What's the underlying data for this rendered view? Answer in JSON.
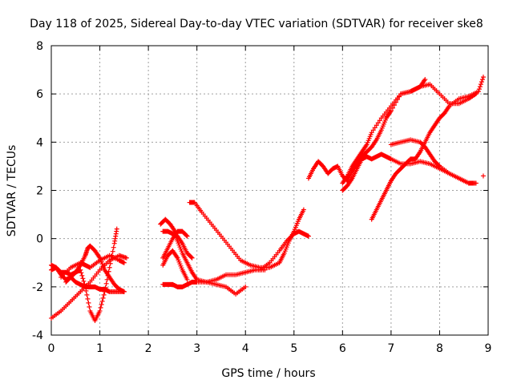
{
  "chart_data": {
    "type": "scatter",
    "title": "Day 118 of 2025, Sidereal Day-to-day VTEC variation (SDTVAR) for receiver ske8",
    "xlabel": "GPS time / hours",
    "ylabel": "SDTVAR / TECUs",
    "xlim": [
      0,
      9
    ],
    "ylim": [
      -4,
      8
    ],
    "xticks": [
      "0",
      "1",
      "2",
      "3",
      "4",
      "5",
      "6",
      "7",
      "8",
      "9"
    ],
    "yticks": [
      "-4",
      "-2",
      "0",
      "2",
      "4",
      "6",
      "8"
    ],
    "grid": true,
    "marker": "plus",
    "color": "#ff0000",
    "series": [
      {
        "x": [
          0.0,
          0.2,
          0.4,
          0.6,
          0.8,
          1.0,
          1.2,
          1.4,
          1.55
        ],
        "y": [
          -3.3,
          -3.0,
          -2.6,
          -2.2,
          -1.8,
          -1.3,
          -0.9,
          -0.7,
          -0.8
        ]
      },
      {
        "x": [
          0.0,
          0.1,
          0.2,
          0.3,
          0.4,
          0.5,
          0.6,
          0.7,
          0.8,
          0.9,
          1.0,
          1.1,
          1.2,
          1.35,
          1.5
        ],
        "y": [
          -1.3,
          -1.2,
          -1.5,
          -1.7,
          -1.6,
          -1.8,
          -1.9,
          -2.0,
          -2.0,
          -2.0,
          -2.1,
          -2.1,
          -2.2,
          -2.2,
          -2.2
        ]
      },
      {
        "x": [
          0.0,
          0.1,
          0.2,
          0.3,
          0.4,
          0.5,
          0.6,
          0.7,
          0.75,
          0.8,
          0.9,
          1.0,
          1.1,
          1.2,
          1.3,
          1.4,
          1.5
        ],
        "y": [
          -1.1,
          -1.2,
          -1.4,
          -1.4,
          -1.5,
          -1.4,
          -1.1,
          -0.7,
          -0.4,
          -0.3,
          -0.5,
          -0.8,
          -1.3,
          -1.6,
          -1.9,
          -2.1,
          -2.2
        ]
      },
      {
        "x": [
          0.3,
          0.4,
          0.5,
          0.6,
          0.7,
          0.8,
          0.9,
          1.0,
          1.1,
          1.2,
          1.3,
          1.35
        ],
        "y": [
          -1.8,
          -1.6,
          -1.4,
          -1.3,
          -2.0,
          -3.0,
          -3.4,
          -3.0,
          -2.2,
          -1.2,
          -0.2,
          0.4
        ]
      },
      {
        "x": [
          0.2,
          0.4,
          0.6,
          0.7,
          0.8,
          1.0,
          1.2,
          1.4,
          1.5
        ],
        "y": [
          -1.6,
          -1.2,
          -1.0,
          -1.1,
          -1.2,
          -0.9,
          -0.7,
          -0.9,
          -1.0
        ]
      },
      {
        "x": [
          2.3,
          2.4,
          2.5,
          2.6,
          2.7,
          2.8,
          2.9,
          3.0,
          3.2,
          3.4,
          3.6,
          3.8,
          4.0
        ],
        "y": [
          -1.9,
          -1.9,
          -1.9,
          -2.0,
          -2.0,
          -1.9,
          -1.8,
          -1.8,
          -1.8,
          -1.9,
          -2.0,
          -2.3,
          -2.0
        ]
      },
      {
        "x": [
          2.25,
          2.35,
          2.45,
          2.55,
          2.6,
          2.7,
          2.8,
          2.9,
          3.0,
          3.2,
          3.4,
          3.6,
          3.8,
          4.0,
          4.2,
          4.4
        ],
        "y": [
          0.6,
          0.8,
          0.6,
          0.3,
          -0.1,
          -0.6,
          -1.0,
          -1.4,
          -1.7,
          -1.8,
          -1.7,
          -1.5,
          -1.5,
          -1.4,
          -1.3,
          -1.3
        ]
      },
      {
        "x": [
          2.3,
          2.4,
          2.5,
          2.6,
          2.7,
          2.8
        ],
        "y": [
          -0.8,
          -0.4,
          0.0,
          0.3,
          0.3,
          0.1
        ]
      },
      {
        "x": [
          2.3,
          2.4,
          2.5,
          2.6,
          2.7,
          2.8
        ],
        "y": [
          -1.1,
          -0.7,
          -0.5,
          -0.8,
          -1.3,
          -1.7
        ]
      },
      {
        "x": [
          2.3,
          2.4,
          2.5,
          2.6,
          2.7,
          2.8,
          2.9
        ],
        "y": [
          0.3,
          0.3,
          0.2,
          0.1,
          -0.2,
          -0.6,
          -0.8
        ]
      },
      {
        "x": [
          2.85,
          2.95,
          3.1,
          3.3,
          3.5,
          3.7,
          3.9,
          4.1,
          4.3,
          4.5,
          4.7,
          4.8,
          4.9,
          5.0,
          5.1,
          5.2
        ],
        "y": [
          1.5,
          1.5,
          1.1,
          0.6,
          0.1,
          -0.4,
          -0.9,
          -1.1,
          -1.2,
          -1.2,
          -1.0,
          -0.6,
          -0.1,
          0.3,
          0.8,
          1.2
        ]
      },
      {
        "x": [
          4.3,
          4.5,
          4.7,
          4.85,
          5.0,
          5.1,
          5.2,
          5.3
        ],
        "y": [
          -1.3,
          -1.0,
          -0.5,
          -0.1,
          0.2,
          0.3,
          0.2,
          0.1
        ]
      },
      {
        "x": [
          5.3,
          5.4,
          5.5,
          5.6,
          5.7,
          5.8,
          5.9,
          6.0,
          6.1,
          6.2,
          6.3,
          6.4,
          6.5,
          6.6,
          6.7,
          6.8,
          6.9,
          7.0,
          7.2,
          7.4,
          7.6,
          7.8,
          8.0,
          8.2,
          8.4,
          8.6,
          8.75
        ],
        "y": [
          2.5,
          2.9,
          3.2,
          3.0,
          2.7,
          2.9,
          3.0,
          2.6,
          2.4,
          2.8,
          3.1,
          3.4,
          3.6,
          3.8,
          4.1,
          4.5,
          5.0,
          5.3,
          6.0,
          6.1,
          6.3,
          6.4,
          6.0,
          5.6,
          5.6,
          5.8,
          6.0
        ]
      },
      {
        "x": [
          6.0,
          6.1,
          6.2,
          6.3,
          6.4,
          6.5,
          6.6,
          6.8,
          7.0,
          7.2,
          7.4,
          7.5,
          7.6,
          7.7
        ],
        "y": [
          2.3,
          2.6,
          3.0,
          3.3,
          3.6,
          3.9,
          4.4,
          5.0,
          5.5,
          6.0,
          6.1,
          6.2,
          6.3,
          6.6
        ]
      },
      {
        "x": [
          6.0,
          6.1,
          6.2,
          6.3,
          6.4,
          6.5,
          6.6,
          6.7,
          6.8,
          6.9,
          7.0,
          7.2,
          7.4,
          7.6,
          7.8,
          8.0,
          8.2,
          8.4,
          8.6,
          8.75
        ],
        "y": [
          2.0,
          2.2,
          2.5,
          2.9,
          3.3,
          3.4,
          3.3,
          3.4,
          3.5,
          3.4,
          3.3,
          3.1,
          3.1,
          3.2,
          3.1,
          2.9,
          2.7,
          2.5,
          2.3,
          2.3
        ]
      },
      {
        "x": [
          6.6,
          6.7,
          6.8,
          6.9,
          7.0,
          7.1,
          7.2,
          7.3,
          7.4,
          7.5,
          7.6,
          7.7,
          7.8,
          7.9,
          8.0,
          8.1,
          8.2,
          8.4,
          8.6,
          8.8,
          8.9
        ],
        "y": [
          0.8,
          1.2,
          1.6,
          2.0,
          2.4,
          2.7,
          2.9,
          3.1,
          3.3,
          3.3,
          3.6,
          4.0,
          4.4,
          4.7,
          5.0,
          5.2,
          5.5,
          5.8,
          5.9,
          6.1,
          6.7
        ]
      },
      {
        "x": [
          7.0,
          7.2,
          7.4,
          7.6,
          7.7,
          7.8,
          7.9,
          8.0,
          8.2,
          8.4,
          8.6,
          8.7
        ],
        "y": [
          3.9,
          4.0,
          4.1,
          4.0,
          3.8,
          3.5,
          3.2,
          3.0,
          2.7,
          2.5,
          2.3,
          2.3
        ]
      },
      {
        "x": [
          8.9
        ],
        "y": [
          2.6
        ]
      }
    ]
  }
}
